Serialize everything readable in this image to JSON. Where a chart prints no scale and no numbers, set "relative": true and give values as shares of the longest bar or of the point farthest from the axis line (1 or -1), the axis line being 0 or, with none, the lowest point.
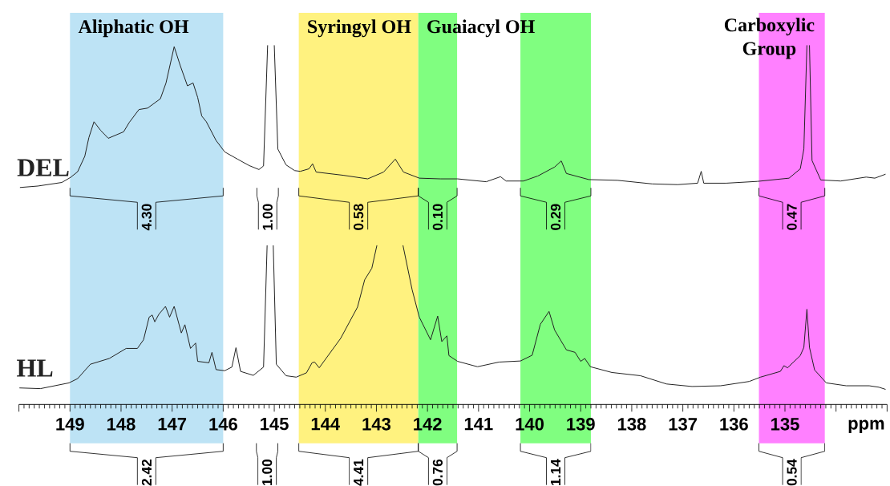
{
  "chart_data": {
    "type": "line",
    "relative": true,
    "xlabel": "ppm",
    "xlim": [
      150,
      133
    ],
    "xticks": [
      {
        "value": 150,
        "label": null
      },
      149,
      148,
      147,
      146,
      145,
      144,
      143,
      142,
      141,
      140,
      139,
      138,
      137,
      136,
      135,
      {
        "value": 134,
        "label": null
      },
      {
        "value": 133,
        "label": null
      }
    ],
    "series": [
      {
        "name": "DEL",
        "color": "#222222",
        "x": [
          149.98,
          149.63,
          149.16,
          148.99,
          148.85,
          148.71,
          148.63,
          148.53,
          148.4,
          148.25,
          147.95,
          147.84,
          147.65,
          147.48,
          147.23,
          147.12,
          146.96,
          146.84,
          146.7,
          146.59,
          146.5,
          146.42,
          146.33,
          146.14,
          145.97,
          145.72,
          145.49,
          145.3,
          145.21,
          145.13,
          145.06,
          145.0,
          144.93,
          144.77,
          144.6,
          144.49,
          144.32,
          144.25,
          144.18,
          143.65,
          143.17,
          142.86,
          142.63,
          142.47,
          142.16,
          141.74,
          141.41,
          140.85,
          140.57,
          140.46,
          140.12,
          139.84,
          139.51,
          139.38,
          139.28,
          138.84,
          138.28,
          137.6,
          137.1,
          136.71,
          136.64,
          136.59,
          136.15,
          135.54,
          134.92,
          134.7,
          134.63,
          134.57,
          134.55,
          134.52,
          134.47,
          134.3,
          133.91,
          133.41,
          133.24,
          133.03
        ],
        "values": [
          0.604,
          0.608,
          0.618,
          0.632,
          0.648,
          0.691,
          0.743,
          0.787,
          0.763,
          0.741,
          0.759,
          0.785,
          0.821,
          0.825,
          0.851,
          0.895,
          0.996,
          0.943,
          0.887,
          0.895,
          0.855,
          0.803,
          0.787,
          0.735,
          0.703,
          0.683,
          0.665,
          0.654,
          0.664,
          1.0,
          null,
          1.0,
          0.711,
          0.667,
          0.651,
          0.649,
          0.656,
          0.67,
          0.647,
          0.638,
          0.628,
          0.647,
          0.683,
          0.647,
          0.63,
          0.628,
          0.628,
          0.62,
          0.634,
          0.622,
          0.622,
          0.636,
          0.661,
          0.678,
          0.643,
          0.626,
          0.624,
          0.614,
          0.612,
          0.616,
          0.649,
          0.616,
          0.616,
          0.621,
          0.63,
          0.656,
          0.711,
          1.0,
          null,
          1.0,
          0.679,
          0.625,
          0.622,
          0.633,
          0.63,
          0.641
        ]
      },
      {
        "name": "HL",
        "color": "#222222",
        "x": [
          149.99,
          149.58,
          149.02,
          148.85,
          148.6,
          148.23,
          147.9,
          147.68,
          147.56,
          147.45,
          147.39,
          147.34,
          147.26,
          147.13,
          147.05,
          146.96,
          146.82,
          146.75,
          146.64,
          146.54,
          146.5,
          146.28,
          146.22,
          146.14,
          145.97,
          145.83,
          145.75,
          145.66,
          145.41,
          145.21,
          145.14,
          145.08,
          145.02,
          144.96,
          144.77,
          144.57,
          144.37,
          144.26,
          144.21,
          144.12,
          143.7,
          143.37,
          143.23,
          143.09,
          142.99,
          142.7,
          142.48,
          142.3,
          142.16,
          141.94,
          141.8,
          141.72,
          141.62,
          141.58,
          141.41,
          141.02,
          140.6,
          140.18,
          139.95,
          139.79,
          139.62,
          139.51,
          139.28,
          139.11,
          139.0,
          138.92,
          138.81,
          138.39,
          137.83,
          137.32,
          136.82,
          136.26,
          135.7,
          135.48,
          135.09,
          135.02,
          134.95,
          134.7,
          134.63,
          134.57,
          134.52,
          134.42,
          134.19,
          133.8,
          133.35,
          133.16,
          133.03
        ],
        "values": [
          0.046,
          0.044,
          0.06,
          0.072,
          0.112,
          0.128,
          0.156,
          0.156,
          0.18,
          0.243,
          0.249,
          0.23,
          0.251,
          0.273,
          0.243,
          0.273,
          0.199,
          0.222,
          0.156,
          0.171,
          0.12,
          0.116,
          0.145,
          0.097,
          0.094,
          0.104,
          0.158,
          0.092,
          0.081,
          0.104,
          0.443,
          null,
          0.443,
          0.112,
          0.08,
          0.076,
          0.088,
          0.116,
          0.118,
          0.102,
          0.184,
          0.271,
          0.347,
          0.379,
          0.443,
          null,
          0.443,
          0.319,
          0.243,
          0.18,
          0.246,
          0.175,
          0.191,
          0.136,
          0.12,
          0.105,
          0.118,
          0.121,
          0.137,
          0.223,
          0.259,
          0.207,
          0.152,
          0.145,
          0.12,
          0.128,
          0.105,
          0.089,
          0.08,
          0.057,
          0.05,
          0.052,
          0.064,
          0.076,
          0.092,
          0.108,
          0.102,
          0.136,
          0.159,
          0.265,
          0.159,
          0.096,
          0.06,
          0.052,
          0.052,
          0.048,
          0.042
        ]
      }
    ],
    "bands": [
      {
        "axis": "x",
        "from": 149,
        "to": 146,
        "label": "Aliphatic OH",
        "color": "#bde3f5"
      },
      {
        "axis": "x",
        "from": 144.52,
        "to": 142.18,
        "label": "Syringyl OH",
        "color": "#fff27f"
      },
      {
        "axis": "x",
        "from": 142.18,
        "to": 141.42,
        "label": "Guaiacyl OH",
        "color": "#80fe80"
      },
      {
        "axis": "x",
        "from": 140.18,
        "to": 138.8,
        "color": "#80fe80"
      },
      {
        "axis": "x",
        "from": 135.51,
        "to": 134.22,
        "label": "Carboxylic Group",
        "color": "#ff80ff"
      }
    ],
    "annotations": [
      "4.30",
      "1.00",
      "0.58",
      "0.10",
      "0.29",
      "0.47",
      "2.42",
      "1.00",
      "4.41",
      "0.76",
      "1.14",
      "0.54"
    ]
  }
}
